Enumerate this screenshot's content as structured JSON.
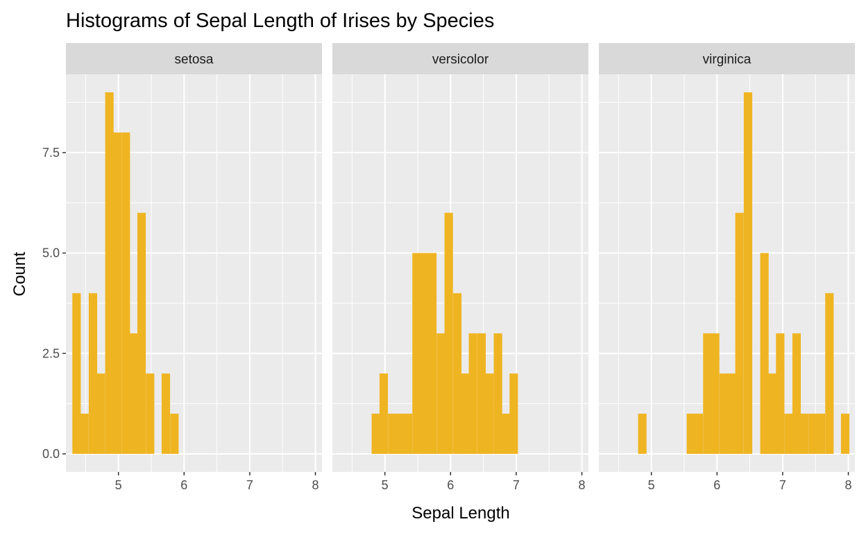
{
  "chart_data": {
    "type": "bar",
    "title": "Histograms of Sepal Length of Irises by Species",
    "xlabel": "Sepal Length",
    "ylabel": "Count",
    "xlim": [
      4.2,
      8.1
    ],
    "ylim": [
      -0.45,
      9.45
    ],
    "xticks": [
      5,
      6,
      7,
      8
    ],
    "yticks": [
      0.0,
      2.5,
      5.0,
      7.5
    ],
    "ytick_labels": [
      "0.0",
      "2.5",
      "5.0",
      "7.5"
    ],
    "bin_width": 0.124,
    "bar_color": "#EFB421",
    "panel_bg": "#EBEBEB",
    "strip_bg": "#D9D9D9",
    "grid": true,
    "facets": [
      {
        "label": "setosa",
        "bins": [
          {
            "x": 4.36,
            "count": 4
          },
          {
            "x": 4.48,
            "count": 1
          },
          {
            "x": 4.61,
            "count": 4
          },
          {
            "x": 4.73,
            "count": 2
          },
          {
            "x": 4.86,
            "count": 9
          },
          {
            "x": 4.98,
            "count": 8
          },
          {
            "x": 5.11,
            "count": 8
          },
          {
            "x": 5.23,
            "count": 3
          },
          {
            "x": 5.35,
            "count": 6
          },
          {
            "x": 5.48,
            "count": 2
          },
          {
            "x": 5.72,
            "count": 2
          },
          {
            "x": 5.85,
            "count": 1
          }
        ]
      },
      {
        "label": "versicolor",
        "bins": [
          {
            "x": 4.86,
            "count": 1
          },
          {
            "x": 4.98,
            "count": 2
          },
          {
            "x": 5.11,
            "count": 1
          },
          {
            "x": 5.23,
            "count": 1
          },
          {
            "x": 5.35,
            "count": 1
          },
          {
            "x": 5.48,
            "count": 5
          },
          {
            "x": 5.6,
            "count": 5
          },
          {
            "x": 5.72,
            "count": 5
          },
          {
            "x": 5.85,
            "count": 3
          },
          {
            "x": 5.97,
            "count": 6
          },
          {
            "x": 6.1,
            "count": 4
          },
          {
            "x": 6.22,
            "count": 2
          },
          {
            "x": 6.34,
            "count": 3
          },
          {
            "x": 6.47,
            "count": 3
          },
          {
            "x": 6.59,
            "count": 2
          },
          {
            "x": 6.72,
            "count": 3
          },
          {
            "x": 6.84,
            "count": 1
          },
          {
            "x": 6.96,
            "count": 2
          }
        ]
      },
      {
        "label": "virginica",
        "bins": [
          {
            "x": 4.86,
            "count": 1
          },
          {
            "x": 5.6,
            "count": 1
          },
          {
            "x": 5.72,
            "count": 1
          },
          {
            "x": 5.85,
            "count": 3
          },
          {
            "x": 5.97,
            "count": 3
          },
          {
            "x": 6.1,
            "count": 2
          },
          {
            "x": 6.22,
            "count": 2
          },
          {
            "x": 6.34,
            "count": 6
          },
          {
            "x": 6.47,
            "count": 9
          },
          {
            "x": 6.72,
            "count": 5
          },
          {
            "x": 6.84,
            "count": 2
          },
          {
            "x": 6.96,
            "count": 3
          },
          {
            "x": 7.09,
            "count": 1
          },
          {
            "x": 7.21,
            "count": 3
          },
          {
            "x": 7.33,
            "count": 1
          },
          {
            "x": 7.46,
            "count": 1
          },
          {
            "x": 7.58,
            "count": 1
          },
          {
            "x": 7.71,
            "count": 4
          },
          {
            "x": 7.95,
            "count": 1
          }
        ]
      }
    ]
  }
}
